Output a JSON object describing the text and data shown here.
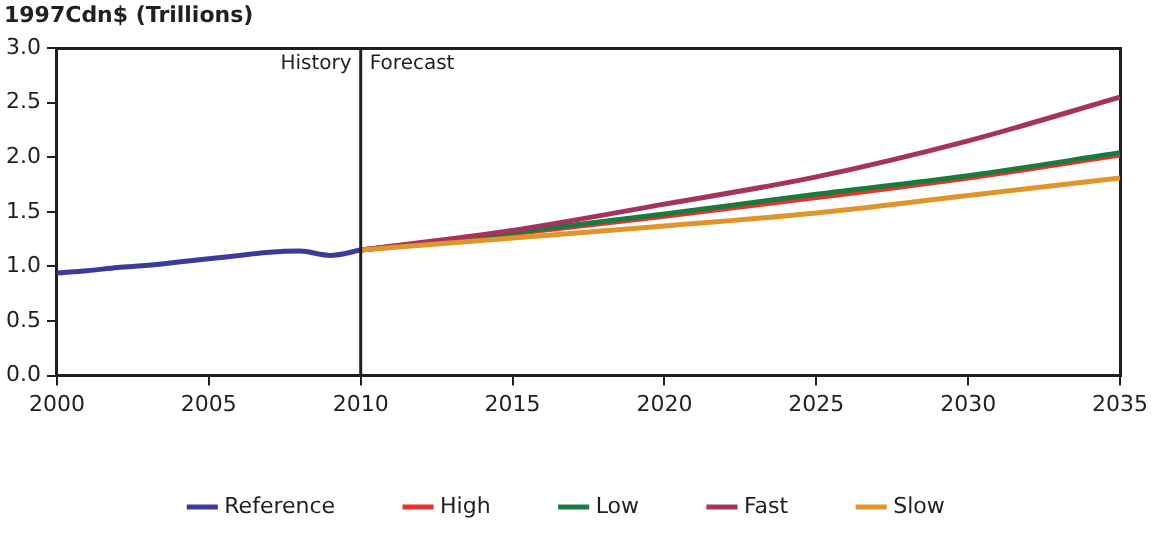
{
  "chart_data": {
    "type": "line",
    "ylabel": "1997Cdn$ (Trillions)",
    "xlim": [
      2000,
      2035
    ],
    "xticks": [
      2000,
      2005,
      2010,
      2015,
      2020,
      2025,
      2030,
      2035
    ],
    "ylim": [
      0,
      3
    ],
    "yticks": [
      {
        "value": 0,
        "label": "0.0"
      },
      {
        "value": 0.5,
        "label": "0.5"
      },
      {
        "value": 1,
        "label": "1.0"
      },
      {
        "value": 1.5,
        "label": "1.5"
      },
      {
        "value": 2,
        "label": "2.0"
      },
      {
        "value": 2.5,
        "label": "2.5"
      },
      {
        "value": 3,
        "label": "3.0"
      }
    ],
    "grid": false,
    "legend": "bottom",
    "marker": "none",
    "line_style": "solid",
    "ref_lines": [
      {
        "axis": "x",
        "value": 2010,
        "color": "#231f20"
      }
    ],
    "annotations": [
      {
        "text": "History",
        "x": 2009.7,
        "y": 2.95
      },
      {
        "text": "Forecast",
        "x": 2010.3,
        "y": 2.95
      }
    ],
    "series": [
      {
        "name": "Reference",
        "color": "#3d3a9a",
        "x": [
          2000,
          2001,
          2002,
          2003,
          2004,
          2005,
          2006,
          2007,
          2008,
          2009,
          2010
        ],
        "values": [
          0.94,
          0.96,
          0.99,
          1.01,
          1.04,
          1.07,
          1.1,
          1.13,
          1.14,
          1.1,
          1.15
        ]
      },
      {
        "name": "High",
        "color": "#e8322b",
        "x": [
          2010,
          2015,
          2020,
          2025,
          2030,
          2035
        ],
        "values": [
          1.15,
          1.3,
          1.46,
          1.63,
          1.81,
          2.02
        ]
      },
      {
        "name": "Low",
        "color": "#1b7a3e",
        "x": [
          2010,
          2015,
          2020,
          2025,
          2030,
          2035
        ],
        "values": [
          1.15,
          1.31,
          1.48,
          1.66,
          1.83,
          2.04
        ]
      },
      {
        "name": "Fast",
        "color": "#a6325f",
        "x": [
          2010,
          2015,
          2020,
          2025,
          2030,
          2035
        ],
        "values": [
          1.15,
          1.33,
          1.57,
          1.82,
          2.15,
          2.55
        ]
      },
      {
        "name": "Slow",
        "color": "#e0952a",
        "x": [
          2010,
          2015,
          2020,
          2025,
          2030,
          2035
        ],
        "values": [
          1.15,
          1.26,
          1.37,
          1.49,
          1.65,
          1.81
        ]
      }
    ]
  }
}
